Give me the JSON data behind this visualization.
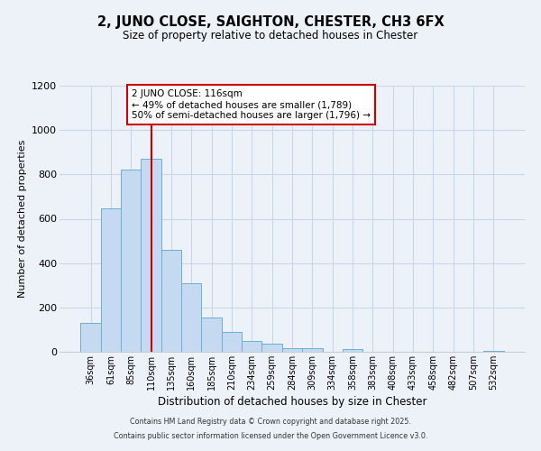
{
  "title": "2, JUNO CLOSE, SAIGHTON, CHESTER, CH3 6FX",
  "subtitle": "Size of property relative to detached houses in Chester",
  "xlabel": "Distribution of detached houses by size in Chester",
  "ylabel": "Number of detached properties",
  "bar_labels": [
    "36sqm",
    "61sqm",
    "85sqm",
    "110sqm",
    "135sqm",
    "160sqm",
    "185sqm",
    "210sqm",
    "234sqm",
    "259sqm",
    "284sqm",
    "309sqm",
    "334sqm",
    "358sqm",
    "383sqm",
    "408sqm",
    "433sqm",
    "458sqm",
    "482sqm",
    "507sqm",
    "532sqm"
  ],
  "bar_values": [
    130,
    645,
    820,
    870,
    460,
    310,
    155,
    90,
    48,
    38,
    15,
    18,
    0,
    12,
    0,
    0,
    0,
    0,
    0,
    0,
    5
  ],
  "bar_color": "#c5d9f0",
  "bar_edge_color": "#6aaed6",
  "vline_x_idx": 3,
  "vline_color": "#cc0000",
  "annotation_title": "2 JUNO CLOSE: 116sqm",
  "annotation_line1": "← 49% of detached houses are smaller (1,789)",
  "annotation_line2": "50% of semi-detached houses are larger (1,796) →",
  "annotation_box_color": "#ffffff",
  "annotation_box_edge": "#cc0000",
  "ylim": [
    0,
    1200
  ],
  "yticks": [
    0,
    200,
    400,
    600,
    800,
    1000,
    1200
  ],
  "grid_color": "#c8d8e8",
  "background_color": "#edf2f9",
  "footer1": "Contains HM Land Registry data © Crown copyright and database right 2025.",
  "footer2": "Contains public sector information licensed under the Open Government Licence v3.0."
}
